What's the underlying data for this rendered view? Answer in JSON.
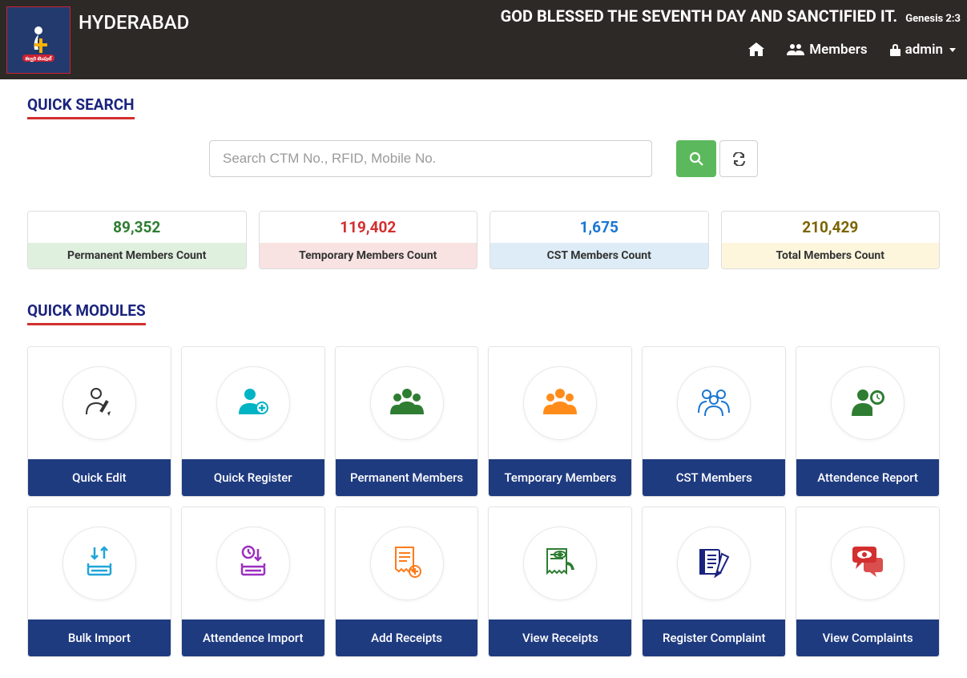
{
  "header": {
    "location": "HYDERABAD",
    "verse": "GOD BLESSED THE SEVENTH DAY AND SANCTIFIED IT.",
    "verse_ref": "Genesis 2:3",
    "nav": {
      "members": "Members",
      "admin": "admin"
    }
  },
  "search": {
    "title": "QUICK SEARCH",
    "placeholder": "Search CTM No., RFID, Mobile No."
  },
  "stats": [
    {
      "value": "89,352",
      "label": "Permanent Members Count",
      "color": "#2e7d32",
      "bg": "#e0f0df"
    },
    {
      "value": "119,402",
      "label": "Temporary Members Count",
      "color": "#d32f2f",
      "bg": "#f8e2e2"
    },
    {
      "value": "1,675",
      "label": "CST Members Count",
      "color": "#1976d2",
      "bg": "#ddecf6"
    },
    {
      "value": "210,429",
      "label": "Total Members Count",
      "color": "#7a6500",
      "bg": "#fdf6dd"
    }
  ],
  "modules": {
    "title": "QUICK MODULES",
    "items": [
      {
        "label": "Quick Edit",
        "icon_color": "#333333",
        "icon": "user-edit"
      },
      {
        "label": "Quick Register",
        "icon_color": "#00b4c4",
        "icon": "user-plus"
      },
      {
        "label": "Permanent Members",
        "icon_color": "#2e7d32",
        "icon": "users"
      },
      {
        "label": "Temporary Members",
        "icon_color": "#ff8c1a",
        "icon": "users"
      },
      {
        "label": "CST Members",
        "icon_color": "#1976d2",
        "icon": "group"
      },
      {
        "label": "Attendence Report",
        "icon_color": "#2e7d32",
        "icon": "user-clock"
      },
      {
        "label": "Bulk Import",
        "icon_color": "#1fa5d8",
        "icon": "import"
      },
      {
        "label": "Attendence Import",
        "icon_color": "#9b2fbf",
        "icon": "clock-import"
      },
      {
        "label": "Add Receipts",
        "icon_color": "#ff7a1a",
        "icon": "receipt-add"
      },
      {
        "label": "View Receipts",
        "icon_color": "#2e7d32",
        "icon": "receipt-view"
      },
      {
        "label": "Register Complaint",
        "icon_color": "#1a237e",
        "icon": "write"
      },
      {
        "label": "View Complaints",
        "icon_color": "#d32f2f",
        "icon": "view-chat"
      }
    ]
  },
  "colors": {
    "header_bg": "#2d2926",
    "module_label_bg": "#1f3b80",
    "accent_red": "#d32f2f",
    "title_color": "#1a237e"
  }
}
